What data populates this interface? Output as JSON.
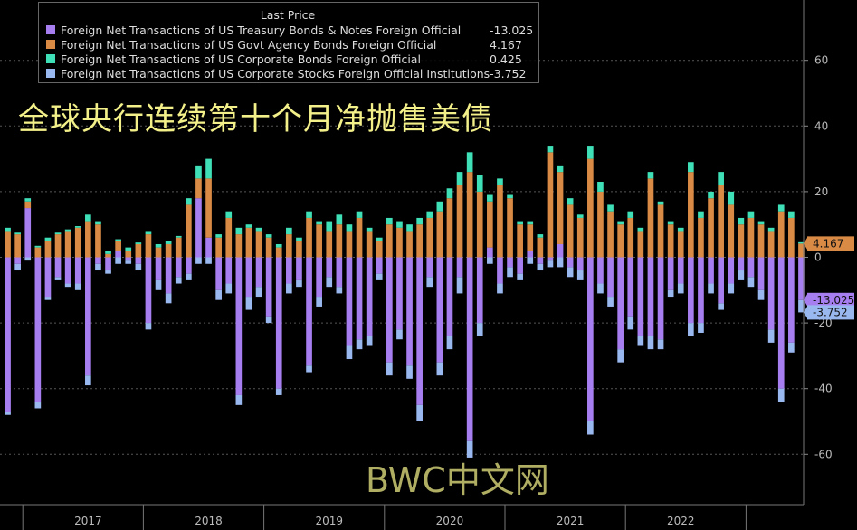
{
  "overlay_title": "全球央行连续第十个月净抛售美债",
  "watermark": "BWC中文网",
  "legend": {
    "title": "Last Price",
    "entries": [
      {
        "name": "Foreign Net Transactions of US Treasury Bonds & Notes Foreign Official",
        "value": "-13.025",
        "color": "#a77ef0"
      },
      {
        "name": "Foreign Net Transactions of US Govt Agency Bonds Foreign Official",
        "value": "4.167",
        "color": "#d98a45"
      },
      {
        "name": "Foreign Net Transactions of US Corporate Bonds Foreign Official",
        "value": "0.425",
        "color": "#3fe0b8"
      },
      {
        "name": "Foreign Net Transactions of US Corporate Stocks Foreign Official Institutions",
        "value": "-3.752",
        "color": "#9ab8f0"
      }
    ]
  },
  "price_tags": [
    {
      "label": "4.167",
      "value": 4.167,
      "color": "#d98a45"
    },
    {
      "label": "-13.025",
      "value": -13.025,
      "color": "#a77ef0"
    },
    {
      "label": "-3.752",
      "value": -16.777,
      "color": "#9ab8f0"
    }
  ],
  "chart_data": {
    "type": "bar",
    "stacked": true,
    "ylim": [
      -72,
      76
    ],
    "y_ticks": [
      60,
      40,
      20,
      0,
      -20,
      -40,
      -60
    ],
    "x_labels": [
      {
        "label": "2017",
        "index": 8
      },
      {
        "label": "2018",
        "index": 20
      },
      {
        "label": "2019",
        "index": 32
      },
      {
        "label": "2020",
        "index": 44
      },
      {
        "label": "2021",
        "index": 56
      },
      {
        "label": "2022",
        "index": 67
      }
    ],
    "series": [
      {
        "name": "Foreign Net Transactions of US Treasury Bonds & Notes Foreign Official",
        "color": "#a77ef0",
        "values": [
          -47,
          -2,
          15,
          -44,
          -12,
          -6,
          -8,
          -8,
          -36,
          -2,
          -4,
          2,
          -1,
          -2,
          -20,
          -7,
          -11,
          -6,
          -5,
          18,
          6,
          -10,
          -8,
          -42,
          -12,
          -9,
          -18,
          -40,
          -8,
          -7,
          -33,
          -12,
          -6,
          -9,
          -27,
          -25,
          -24,
          -5,
          -32,
          -22,
          -33,
          -45,
          -6,
          -32,
          -24,
          -6,
          -56,
          -20,
          3,
          -8,
          -3,
          -5,
          2,
          -2,
          -1,
          4,
          -3,
          -4,
          -50,
          -8,
          -12,
          -28,
          -18,
          -24,
          -24,
          -25,
          -10,
          -8,
          -20,
          -20,
          -8,
          -14,
          -8,
          -4,
          -6,
          -10,
          -22,
          -40,
          -26,
          -13.025
        ]
      },
      {
        "name": "Foreign Net Transactions of US Govt Agency Bonds Foreign Official",
        "color": "#d98a45",
        "values": [
          8,
          7,
          2,
          3,
          5,
          7,
          8,
          9,
          11,
          10,
          1,
          3,
          2,
          4,
          7,
          3,
          4,
          6,
          16,
          6,
          18,
          6,
          12,
          7,
          9,
          8,
          6,
          3,
          7,
          5,
          12,
          10,
          8,
          10,
          8,
          12,
          8,
          5,
          10,
          9,
          8,
          10,
          12,
          14,
          18,
          22,
          26,
          20,
          14,
          22,
          18,
          10,
          8,
          6,
          32,
          22,
          16,
          12,
          30,
          20,
          14,
          10,
          12,
          8,
          24,
          16,
          10,
          8,
          26,
          12,
          18,
          22,
          16,
          10,
          12,
          10,
          8,
          14,
          12,
          4.167
        ]
      },
      {
        "name": "Foreign Net Transactions of US Corporate Bonds Foreign Official",
        "color": "#3fe0b8",
        "values": [
          1,
          0.5,
          1,
          0.5,
          1,
          0.5,
          0.5,
          0.5,
          2,
          1,
          1,
          0.5,
          1,
          0.5,
          1,
          1,
          1,
          0.5,
          2,
          4,
          6,
          1,
          2,
          2,
          1,
          1,
          1,
          1,
          2,
          1,
          2,
          1,
          3,
          3,
          2,
          2,
          1,
          1,
          2,
          2,
          2,
          2,
          2,
          3,
          3,
          4,
          6,
          5,
          2,
          2,
          1,
          1,
          1,
          1,
          2,
          2,
          2,
          1,
          4,
          3,
          2,
          1,
          2,
          1,
          2,
          1,
          1,
          1,
          3,
          2,
          2,
          4,
          4,
          2,
          2,
          1,
          1,
          2,
          2,
          0.425
        ]
      },
      {
        "name": "Foreign Net Transactions of US Corporate Stocks Foreign Official Institutions",
        "color": "#9ab8f0",
        "values": [
          -1,
          -2,
          -1,
          -2,
          -1,
          -1,
          -1,
          -2,
          -3,
          -2,
          -1,
          -2,
          -1,
          -2,
          -2,
          -3,
          -3,
          -2,
          -2,
          -2,
          -2,
          -3,
          -3,
          -3,
          -4,
          -3,
          -2,
          -2,
          -3,
          -2,
          -2,
          -3,
          -3,
          -2,
          -4,
          -3,
          -3,
          -2,
          -4,
          -3,
          -4,
          -5,
          -3,
          -4,
          -4,
          -5,
          -5,
          -4,
          -2,
          -3,
          -3,
          -2,
          -2,
          -2,
          -2,
          -3,
          -3,
          -3,
          -4,
          -3,
          -3,
          -4,
          -4,
          -3,
          -4,
          -3,
          -2,
          -3,
          -4,
          -3,
          -3,
          -2,
          -3,
          -3,
          -3,
          -3,
          -4,
          -4,
          -3,
          -3.752
        ]
      }
    ]
  }
}
